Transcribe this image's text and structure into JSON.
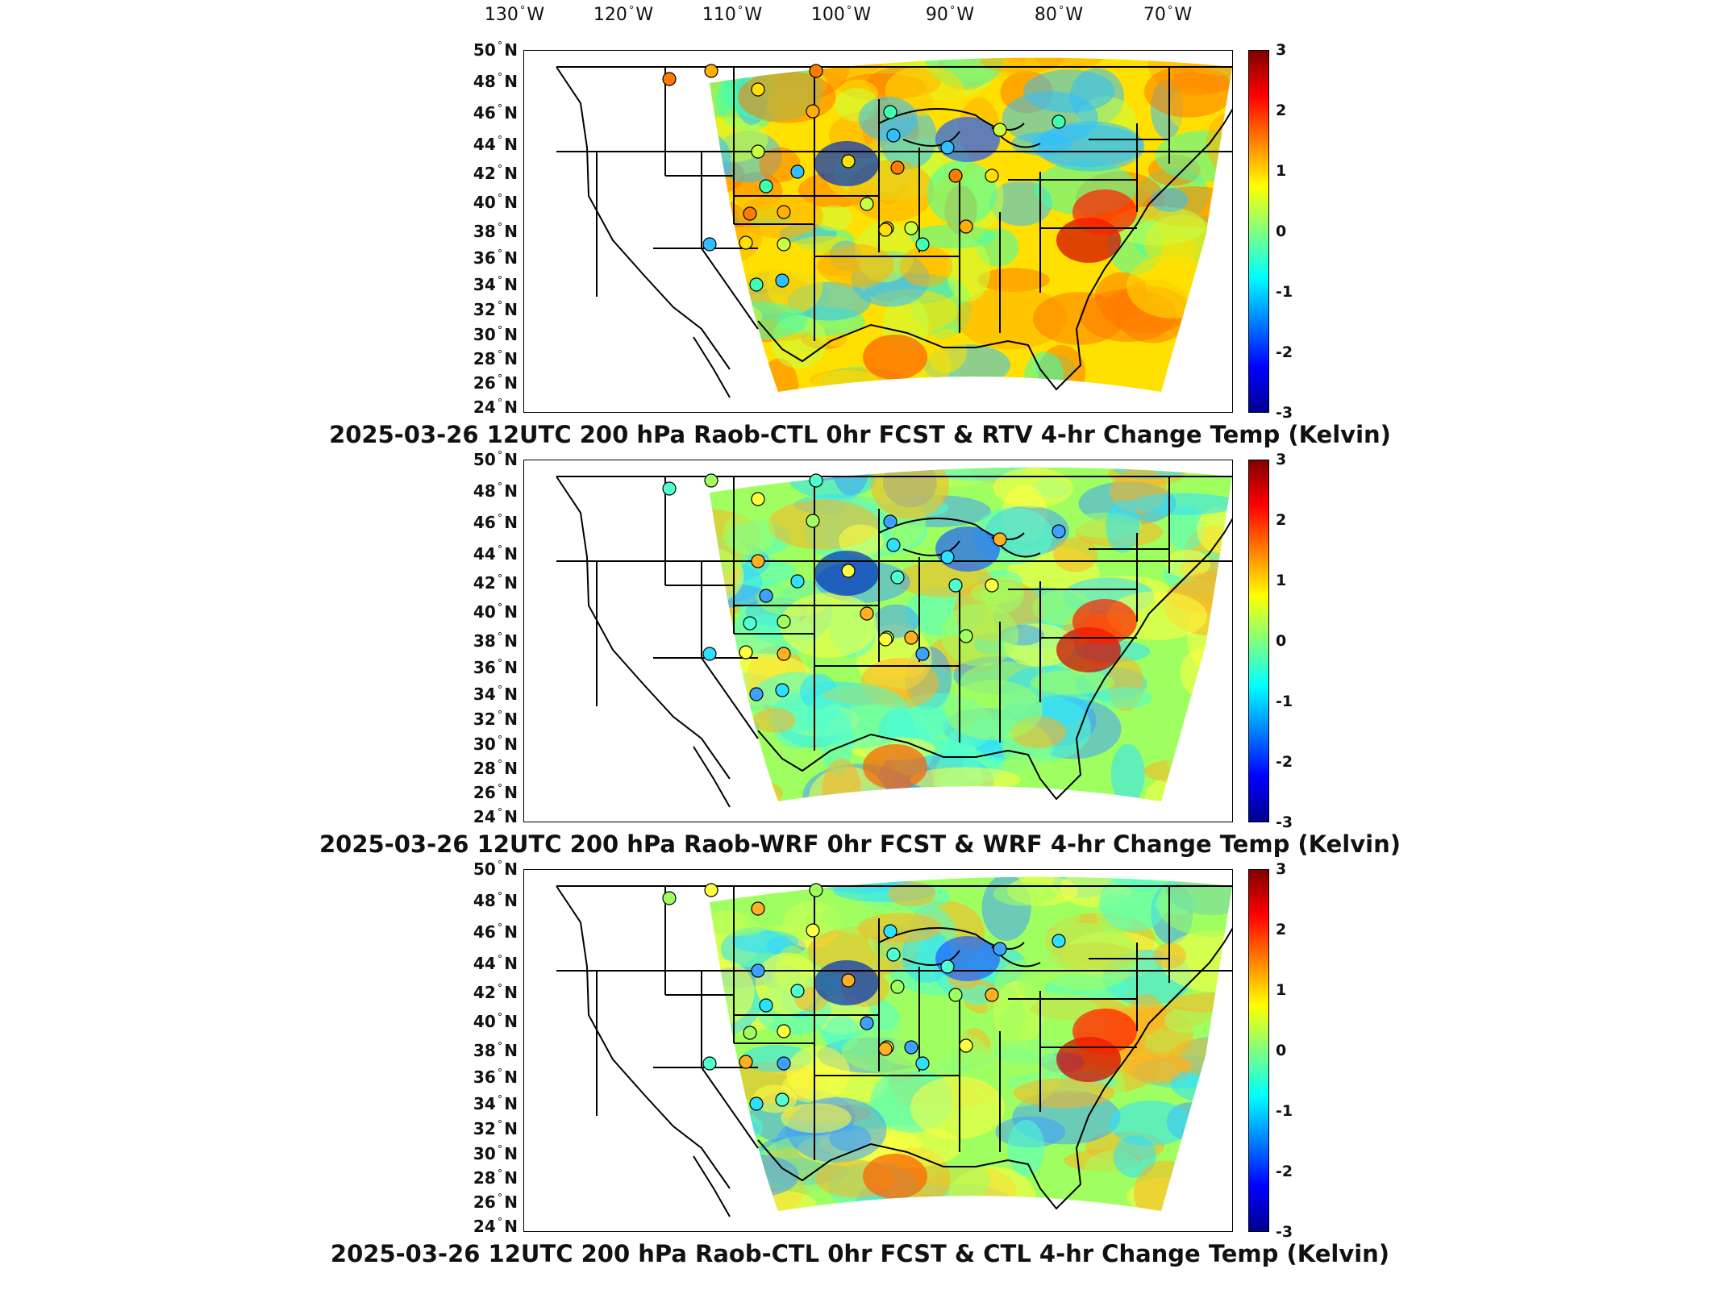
{
  "longitude_labels": [
    "130",
    "120",
    "110",
    "100",
    "90",
    "80",
    "70"
  ],
  "longitude_suffix": "W",
  "latitude_labels": [
    "50",
    "48",
    "46",
    "44",
    "42",
    "40",
    "38",
    "36",
    "34",
    "32",
    "30",
    "28",
    "26",
    "24"
  ],
  "latitude_suffix": "N",
  "degree_symbol": "°",
  "colorbar": {
    "ticks": [
      "3",
      "2",
      "1",
      "0",
      "-1",
      "-2",
      "-3"
    ],
    "range": [
      -3,
      3
    ],
    "colormap": "jet",
    "colors": [
      "#00008f",
      "#0000ff",
      "#0080ff",
      "#00ffff",
      "#80ff80",
      "#ffff00",
      "#ff8000",
      "#ff0000",
      "#800000"
    ]
  },
  "panels": [
    {
      "title": "2025-03-26 12UTC 200 hPa Raob-CTL 0hr FCST & RTV 4-hr Change Temp (Kelvin)",
      "field_bias": "warm"
    },
    {
      "title": "2025-03-26 12UTC 200 hPa Raob-WRF 0hr FCST & WRF 4-hr Change Temp (Kelvin)",
      "field_bias": "neutral"
    },
    {
      "title": "2025-03-26 12UTC 200 hPa Raob-CTL 0hr FCST & CTL 4-hr Change Temp (Kelvin)",
      "field_bias": "neutral"
    }
  ]
}
